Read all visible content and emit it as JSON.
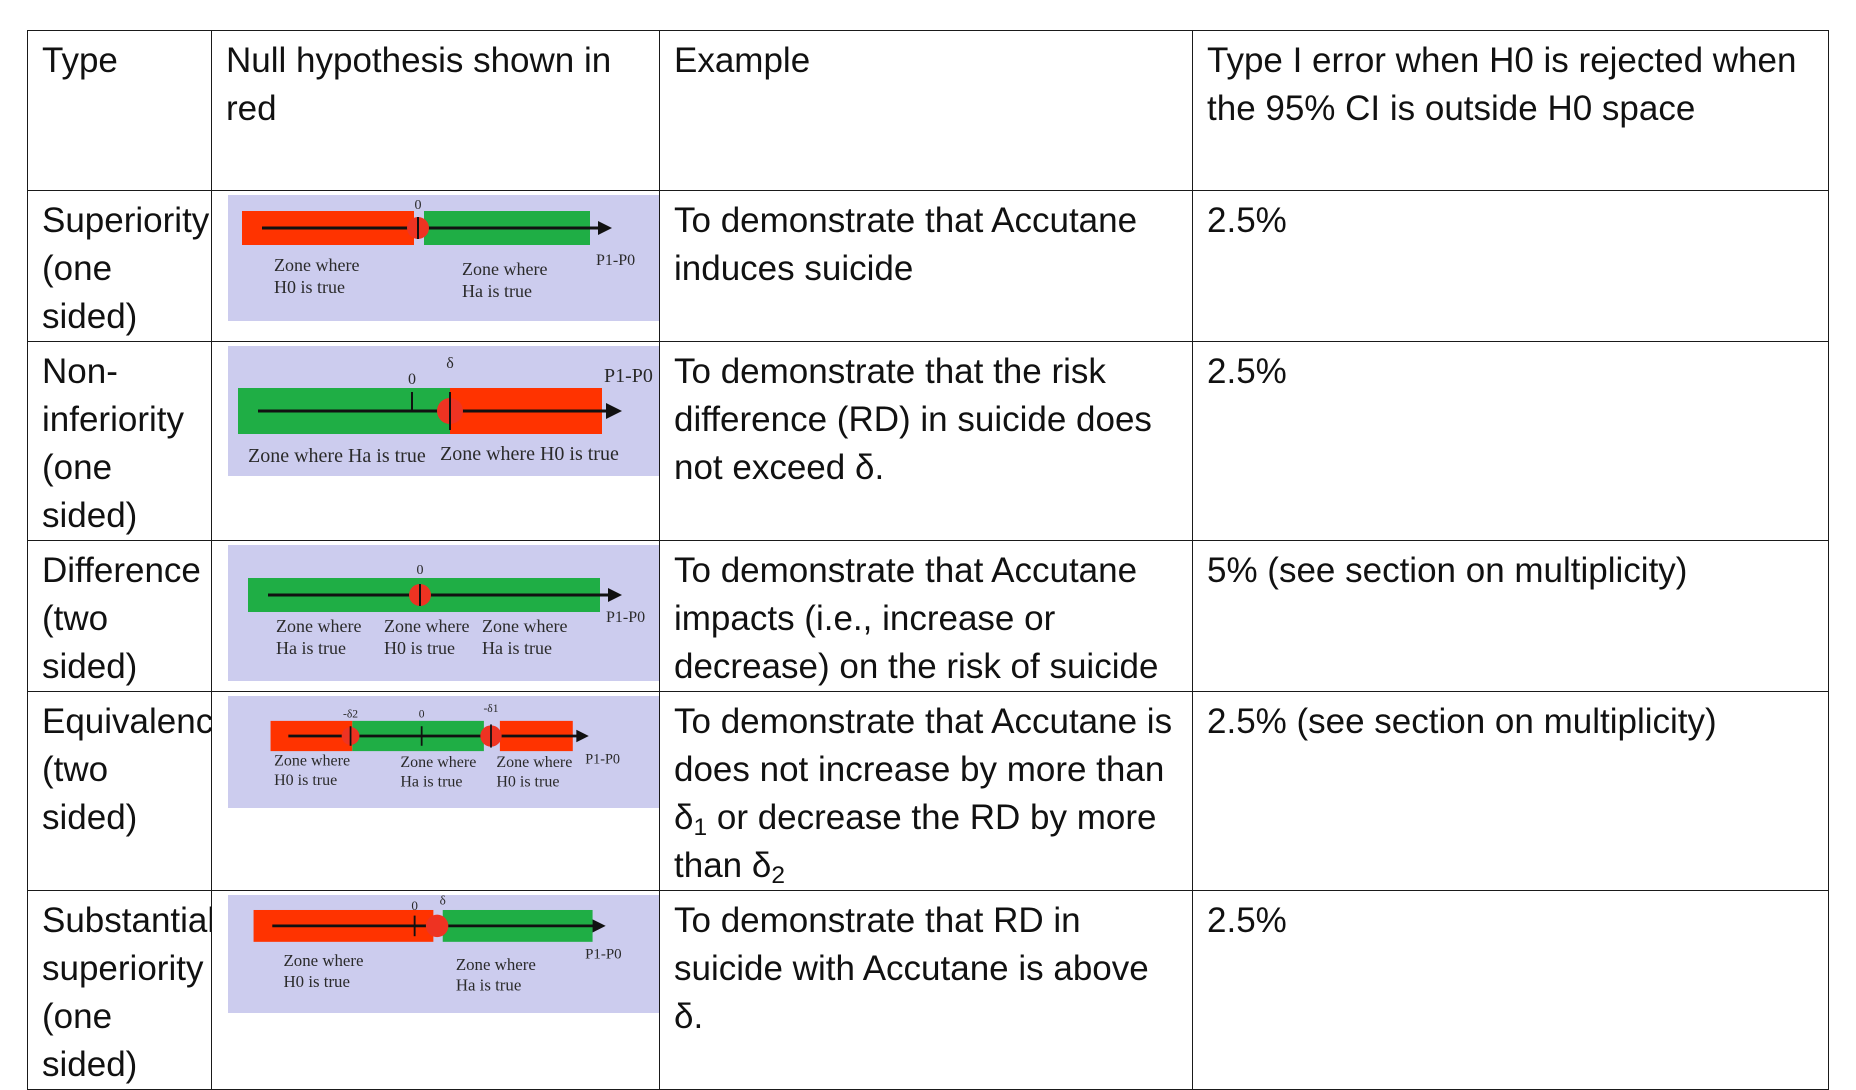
{
  "headers": {
    "type": "Type",
    "null_hypothesis": "Null hypothesis shown in red",
    "example": "Example",
    "type1_error": "Type I error when H0 is rejected when the 95% CI is outside H0 space"
  },
  "rows": [
    {
      "type": "Superiority (one sided)",
      "diagram": {
        "zero_label": "0",
        "axis_label": "P1-P0",
        "zone_left_line1": "Zone where",
        "zone_left_line2": "H0 is true",
        "zone_right_line1": "Zone where",
        "zone_right_line2": "Ha is true"
      },
      "example": "To demonstrate that Accutane induces suicide",
      "error": "2.5%"
    },
    {
      "type": "Non-inferiority (one sided)",
      "diagram": {
        "zero_label": "0",
        "delta_label": "δ",
        "axis_label": "P1-P0",
        "zone_left": "Zone where Ha is true",
        "zone_right": "Zone where H0 is true"
      },
      "example": "To demonstrate that the risk difference (RD) in suicide does not exceed δ.",
      "error": "2.5%"
    },
    {
      "type": "Difference (two sided)",
      "diagram": {
        "zero_label": "0",
        "axis_label": "P1-P0",
        "zone1_line1": "Zone where",
        "zone1_line2": "Ha is true",
        "zone2_line1": "Zone where",
        "zone2_line2": "H0 is true",
        "zone3_line1": "Zone where",
        "zone3_line2": "Ha is true"
      },
      "example": "To demonstrate that Accutane impacts (i.e., increase or decrease) on the risk of suicide",
      "error": "5% (see section on multiplicity)"
    },
    {
      "type": "Equivalence (two sided)",
      "diagram": {
        "delta2_label": "-δ2",
        "zero_label": "0",
        "delta1_label": "-δ1",
        "axis_label": "P1-P0",
        "zone1_line1": "Zone where",
        "zone1_line2": "H0 is true",
        "zone2_line1": "Zone where",
        "zone2_line2": "Ha is true",
        "zone3_line1": "Zone where",
        "zone3_line2": "H0 is true"
      },
      "example_prefix": "To demonstrate that Accutane is does not increase by more than δ",
      "example_sub1": "1",
      "example_mid": " or decrease the RD by more than δ",
      "example_sub2": "2",
      "error": "2.5% (see section on multiplicity)"
    },
    {
      "type": "Substantial superiority (one sided)",
      "diagram": {
        "zero_label": "0",
        "delta_label": "δ",
        "axis_label": "P1-P0",
        "zone_left_line1": "Zone where",
        "zone_left_line2": "H0 is true",
        "zone_right_line1": "Zone where",
        "zone_right_line2": "Ha is true"
      },
      "example": "To demonstrate that RD in suicide with Accutane is above δ.",
      "error": "2.5%"
    }
  ],
  "colors": {
    "null_zone": "#ff3300",
    "alt_zone": "#1fae45",
    "marker": "#ee3322",
    "background": "#ccccee"
  }
}
